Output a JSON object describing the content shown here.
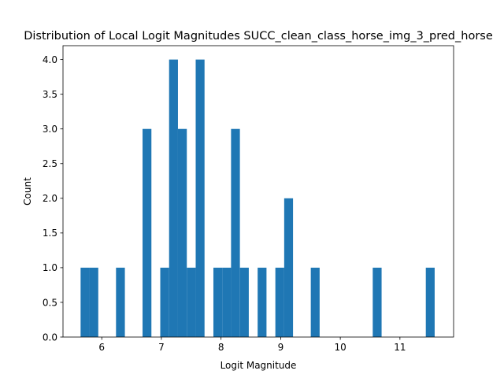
{
  "chart_data": {
    "type": "bar",
    "title": "Distribution of Local Logit Magnitudes SUCC_clean_class_horse_img_3_pred_horse",
    "xlabel": "Logit Magnitude",
    "ylabel": "Count",
    "xlim": [
      5.35,
      11.9
    ],
    "ylim": [
      0,
      4.2
    ],
    "xticks": [
      6,
      7,
      8,
      9,
      10,
      11
    ],
    "yticks": [
      0.0,
      0.5,
      1.0,
      1.5,
      2.0,
      2.5,
      3.0,
      3.5,
      4.0
    ],
    "ytick_format": 1,
    "grid": false,
    "legend": "none",
    "bar_color": "#1f77b4",
    "bin_width": 0.1484,
    "bins": [
      {
        "x0": 5.645,
        "count": 1
      },
      {
        "x0": 5.793,
        "count": 1
      },
      {
        "x0": 6.239,
        "count": 1
      },
      {
        "x0": 6.684,
        "count": 3
      },
      {
        "x0": 6.981,
        "count": 1
      },
      {
        "x0": 7.129,
        "count": 4
      },
      {
        "x0": 7.278,
        "count": 3
      },
      {
        "x0": 7.426,
        "count": 1
      },
      {
        "x0": 7.575,
        "count": 4
      },
      {
        "x0": 7.872,
        "count": 1
      },
      {
        "x0": 8.02,
        "count": 1
      },
      {
        "x0": 8.168,
        "count": 3
      },
      {
        "x0": 8.317,
        "count": 1
      },
      {
        "x0": 8.614,
        "count": 1
      },
      {
        "x0": 8.911,
        "count": 1
      },
      {
        "x0": 9.059,
        "count": 2
      },
      {
        "x0": 9.505,
        "count": 1
      },
      {
        "x0": 10.544,
        "count": 1
      },
      {
        "x0": 11.434,
        "count": 1
      }
    ]
  }
}
